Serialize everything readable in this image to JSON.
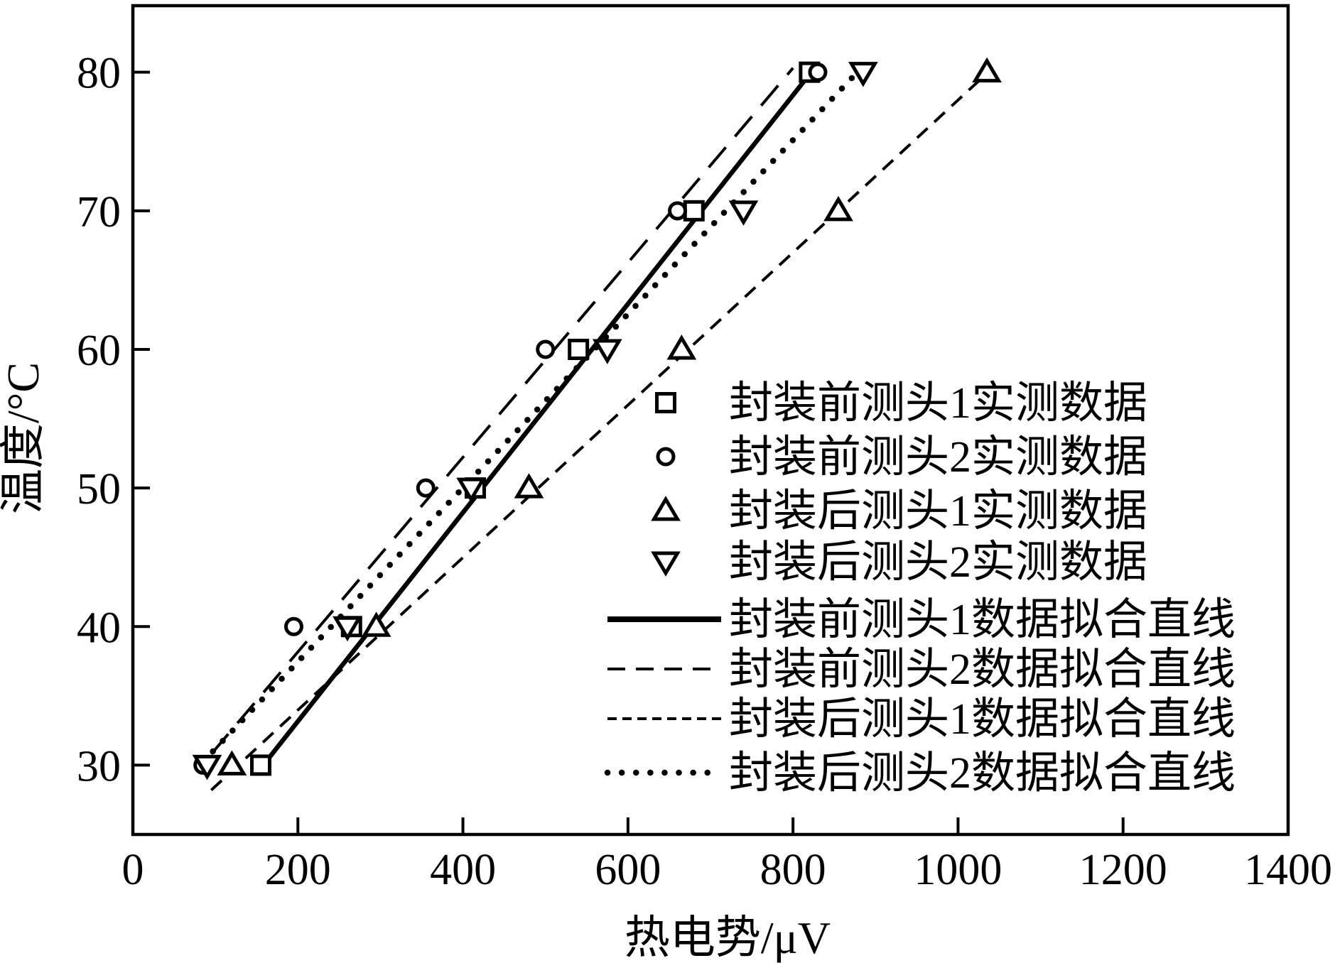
{
  "figure": {
    "background": "#ffffff",
    "ink_color": "#000000"
  },
  "chart_data": {
    "type": "scatter",
    "title": "",
    "xlabel": "热电势/μV",
    "ylabel": "温度/°C",
    "xlim": [
      0,
      1400
    ],
    "ylim": [
      25,
      84.8
    ],
    "x_ticks": [
      0,
      200,
      400,
      600,
      800,
      1000,
      1200,
      1400
    ],
    "y_ticks": [
      30,
      40,
      50,
      60,
      70,
      80
    ],
    "grid": false,
    "legend_position": "inside-right",
    "temperatures_C": [
      30,
      40,
      50,
      60,
      70,
      80
    ],
    "series": [
      {
        "name": "封装前测头1实测数据",
        "marker": "square",
        "values_uV": [
          155,
          265,
          415,
          540,
          680,
          820
        ]
      },
      {
        "name": "封装前测头2实测数据",
        "marker": "circle",
        "values_uV": [
          85,
          195,
          355,
          500,
          660,
          830
        ]
      },
      {
        "name": "封装后测头1实测数据",
        "marker": "triangle-up",
        "values_uV": [
          120,
          295,
          480,
          665,
          855,
          1035
        ]
      },
      {
        "name": "封装后测头2实测数据",
        "marker": "triangle-down",
        "values_uV": [
          90,
          260,
          410,
          575,
          740,
          885
        ]
      }
    ],
    "fit_lines": [
      {
        "name": "封装前测头1数据拟合直线",
        "style": "solid",
        "from_T_uV": [
          30.0,
          158
        ],
        "to_T_uV": [
          80.0,
          822
        ]
      },
      {
        "name": "封装前测头2数据拟合直线",
        "style": "long-dash",
        "from_T_uV": [
          30.8,
          95
        ],
        "to_T_uV": [
          80.3,
          800
        ]
      },
      {
        "name": "封装后测头1数据拟合直线",
        "style": "short-dash",
        "from_T_uV": [
          28.2,
          95
        ],
        "to_T_uV": [
          80.3,
          1042
        ]
      },
      {
        "name": "封装后测头2数据拟合直线",
        "style": "dotted",
        "from_T_uV": [
          31.0,
          97
        ],
        "to_T_uV": [
          80.0,
          878
        ]
      }
    ]
  }
}
